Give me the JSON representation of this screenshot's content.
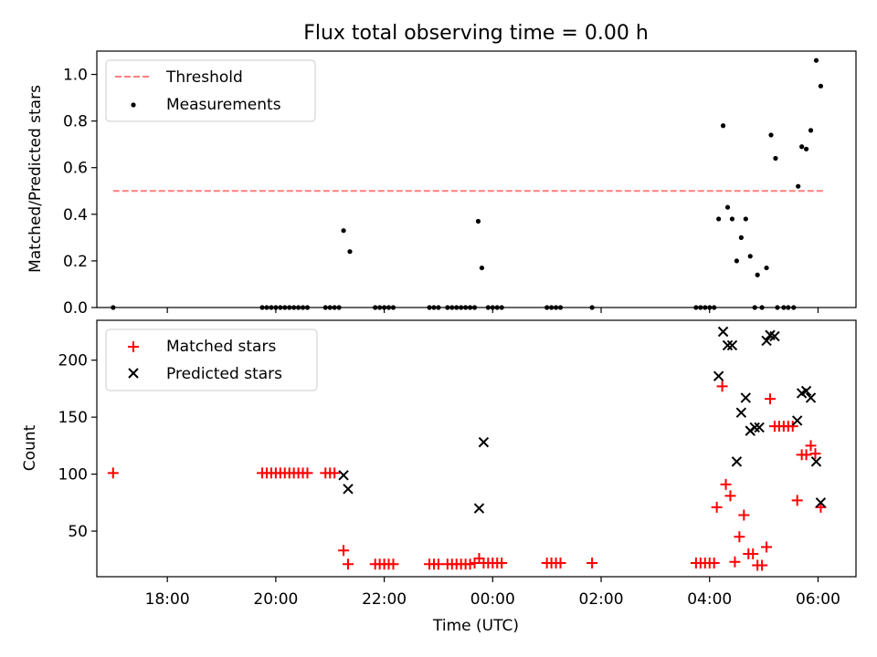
{
  "title": "Flux total observing time = 0.00 h",
  "xlabel": "Time (UTC)",
  "x_tick_labels": [
    "18:00",
    "20:00",
    "22:00",
    "00:00",
    "02:00",
    "04:00",
    "06:00"
  ],
  "colors": {
    "threshold": "#ff7f7f",
    "measurements": "#000000",
    "matched": "#ff0000",
    "predicted": "#000000"
  },
  "chart_data": [
    {
      "type": "scatter",
      "ylabel": "Matched/Predicted stars",
      "ylim": [
        0,
        1.1
      ],
      "xlim": [
        "16:42",
        "06:42"
      ],
      "y_tick_labels": [
        "0.0",
        "0.2",
        "0.4",
        "0.6",
        "0.8",
        "1.0"
      ],
      "legend_position": "upper-left",
      "series": [
        {
          "name": "Threshold",
          "style": "dashed-line",
          "points": [
            [
              "17:00",
              0.5
            ],
            [
              "06:06",
              0.5
            ]
          ]
        },
        {
          "name": "Measurements",
          "style": "dot",
          "points": [
            [
              "17:00",
              0.0
            ],
            [
              "19:45",
              0.0
            ],
            [
              "19:50",
              0.0
            ],
            [
              "19:55",
              0.0
            ],
            [
              "20:00",
              0.0
            ],
            [
              "20:05",
              0.0
            ],
            [
              "20:10",
              0.0
            ],
            [
              "20:15",
              0.0
            ],
            [
              "20:20",
              0.0
            ],
            [
              "20:25",
              0.0
            ],
            [
              "20:30",
              0.0
            ],
            [
              "20:35",
              0.0
            ],
            [
              "20:55",
              0.0
            ],
            [
              "21:00",
              0.0
            ],
            [
              "21:05",
              0.0
            ],
            [
              "21:10",
              0.0
            ],
            [
              "21:15",
              0.33
            ],
            [
              "21:22",
              0.24
            ],
            [
              "21:50",
              0.0
            ],
            [
              "21:55",
              0.0
            ],
            [
              "22:00",
              0.0
            ],
            [
              "22:05",
              0.0
            ],
            [
              "22:10",
              0.0
            ],
            [
              "22:50",
              0.0
            ],
            [
              "22:55",
              0.0
            ],
            [
              "23:00",
              0.0
            ],
            [
              "23:10",
              0.0
            ],
            [
              "23:15",
              0.0
            ],
            [
              "23:20",
              0.0
            ],
            [
              "23:25",
              0.0
            ],
            [
              "23:30",
              0.0
            ],
            [
              "23:35",
              0.0
            ],
            [
              "23:40",
              0.0
            ],
            [
              "23:44",
              0.37
            ],
            [
              "23:48",
              0.17
            ],
            [
              "23:55",
              0.0
            ],
            [
              "00:00",
              0.0
            ],
            [
              "00:05",
              0.0
            ],
            [
              "00:10",
              0.0
            ],
            [
              "01:00",
              0.0
            ],
            [
              "01:05",
              0.0
            ],
            [
              "01:10",
              0.0
            ],
            [
              "01:15",
              0.0
            ],
            [
              "01:50",
              0.0
            ],
            [
              "03:45",
              0.0
            ],
            [
              "03:50",
              0.0
            ],
            [
              "03:55",
              0.0
            ],
            [
              "04:00",
              0.0
            ],
            [
              "04:05",
              0.0
            ],
            [
              "04:10",
              0.38
            ],
            [
              "04:15",
              0.78
            ],
            [
              "04:20",
              0.43
            ],
            [
              "04:25",
              0.38
            ],
            [
              "04:30",
              0.2
            ],
            [
              "04:35",
              0.3
            ],
            [
              "04:40",
              0.38
            ],
            [
              "04:45",
              0.22
            ],
            [
              "04:50",
              0.0
            ],
            [
              "04:53",
              0.14
            ],
            [
              "04:58",
              0.0
            ],
            [
              "05:03",
              0.17
            ],
            [
              "05:08",
              0.74
            ],
            [
              "05:13",
              0.64
            ],
            [
              "05:15",
              0.0
            ],
            [
              "05:22",
              0.0
            ],
            [
              "05:27",
              0.0
            ],
            [
              "05:33",
              0.0
            ],
            [
              "05:38",
              0.52
            ],
            [
              "05:42",
              0.69
            ],
            [
              "05:47",
              0.68
            ],
            [
              "05:52",
              0.76
            ],
            [
              "05:58",
              1.06
            ],
            [
              "06:03",
              0.95
            ]
          ]
        }
      ]
    },
    {
      "type": "scatter",
      "ylabel": "Count",
      "ylim": [
        10,
        235
      ],
      "xlim": [
        "16:42",
        "06:42"
      ],
      "y_tick_labels": [
        "50",
        "100",
        "150",
        "200"
      ],
      "legend_position": "upper-left",
      "series": [
        {
          "name": "Matched stars",
          "style": "plus",
          "points": [
            [
              "17:00",
              101
            ],
            [
              "19:45",
              101
            ],
            [
              "19:50",
              101
            ],
            [
              "19:55",
              101
            ],
            [
              "20:00",
              101
            ],
            [
              "20:05",
              101
            ],
            [
              "20:10",
              101
            ],
            [
              "20:15",
              101
            ],
            [
              "20:20",
              101
            ],
            [
              "20:25",
              101
            ],
            [
              "20:30",
              101
            ],
            [
              "20:35",
              101
            ],
            [
              "20:55",
              101
            ],
            [
              "21:00",
              101
            ],
            [
              "21:05",
              101
            ],
            [
              "21:15",
              33
            ],
            [
              "21:20",
              21
            ],
            [
              "21:50",
              21
            ],
            [
              "21:55",
              21
            ],
            [
              "22:00",
              21
            ],
            [
              "22:05",
              21
            ],
            [
              "22:10",
              21
            ],
            [
              "22:50",
              21
            ],
            [
              "22:55",
              21
            ],
            [
              "23:00",
              21
            ],
            [
              "23:10",
              21
            ],
            [
              "23:15",
              21
            ],
            [
              "23:20",
              21
            ],
            [
              "23:25",
              21
            ],
            [
              "23:30",
              21
            ],
            [
              "23:35",
              21
            ],
            [
              "23:40",
              22
            ],
            [
              "23:45",
              26
            ],
            [
              "23:50",
              22
            ],
            [
              "23:55",
              22
            ],
            [
              "00:00",
              22
            ],
            [
              "00:05",
              22
            ],
            [
              "00:10",
              22
            ],
            [
              "01:00",
              22
            ],
            [
              "01:05",
              22
            ],
            [
              "01:10",
              22
            ],
            [
              "01:15",
              22
            ],
            [
              "01:50",
              22
            ],
            [
              "03:45",
              22
            ],
            [
              "03:50",
              22
            ],
            [
              "03:55",
              22
            ],
            [
              "04:00",
              22
            ],
            [
              "04:05",
              22
            ],
            [
              "04:08",
              71
            ],
            [
              "04:14",
              177
            ],
            [
              "04:18",
              91
            ],
            [
              "04:23",
              81
            ],
            [
              "04:28",
              23
            ],
            [
              "04:33",
              45
            ],
            [
              "04:38",
              64
            ],
            [
              "04:43",
              30
            ],
            [
              "04:48",
              30
            ],
            [
              "04:53",
              20
            ],
            [
              "04:58",
              20
            ],
            [
              "05:03",
              36
            ],
            [
              "05:07",
              166
            ],
            [
              "05:12",
              142
            ],
            [
              "05:17",
              142
            ],
            [
              "05:22",
              142
            ],
            [
              "05:27",
              142
            ],
            [
              "05:32",
              142
            ],
            [
              "05:37",
              77
            ],
            [
              "05:42",
              117
            ],
            [
              "05:47",
              117
            ],
            [
              "05:52",
              125
            ],
            [
              "05:57",
              118
            ],
            [
              "06:03",
              71
            ]
          ]
        },
        {
          "name": "Predicted stars",
          "style": "x",
          "points": [
            [
              "21:15",
              99
            ],
            [
              "21:20",
              87
            ],
            [
              "23:45",
              70
            ],
            [
              "23:50",
              128
            ],
            [
              "04:10",
              186
            ],
            [
              "04:15",
              225
            ],
            [
              "04:20",
              213
            ],
            [
              "04:25",
              213
            ],
            [
              "04:30",
              111
            ],
            [
              "04:35",
              154
            ],
            [
              "04:40",
              167
            ],
            [
              "04:45",
              138
            ],
            [
              "04:50",
              141
            ],
            [
              "04:55",
              141
            ],
            [
              "05:03",
              217
            ],
            [
              "05:07",
              222
            ],
            [
              "05:12",
              221
            ],
            [
              "05:37",
              147
            ],
            [
              "05:42",
              171
            ],
            [
              "05:47",
              173
            ],
            [
              "05:52",
              167
            ],
            [
              "05:58",
              111
            ],
            [
              "06:03",
              75
            ]
          ]
        }
      ]
    }
  ]
}
